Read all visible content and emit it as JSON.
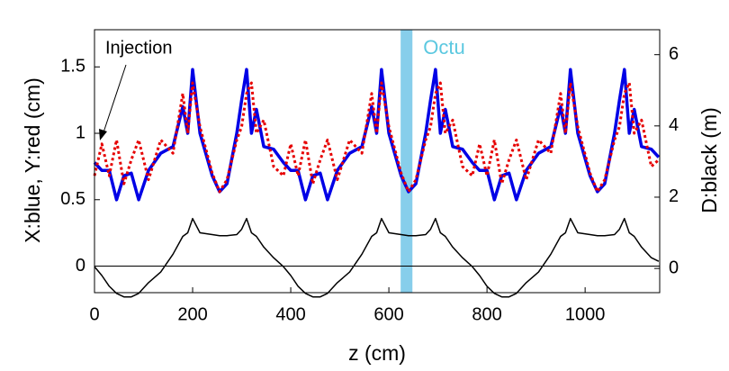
{
  "chart_data": {
    "type": "line",
    "xlabel": "z (cm)",
    "ylabel": "X:blue, Y:red (cm)",
    "y2label": "D:black (m)",
    "xlim": [
      0,
      1152
    ],
    "xticks": [
      0,
      200,
      400,
      600,
      800,
      1000
    ],
    "ylim": [
      -0.2,
      1.78
    ],
    "yticks": [
      0,
      0.5,
      1,
      1.5
    ],
    "y2lim": [
      -0.68,
      6.7
    ],
    "y2ticks": [
      0,
      2,
      4,
      6
    ],
    "highlight": {
      "label": "Octu",
      "xrange": [
        624,
        648
      ],
      "color": "#87ceeb"
    },
    "annotation": "Injection",
    "x": [
      0,
      15,
      30,
      45,
      60,
      75,
      90,
      110,
      135,
      160,
      180,
      190,
      200,
      215,
      240,
      255,
      270,
      290,
      300,
      310,
      320,
      330,
      345,
      365,
      385,
      400,
      415,
      430,
      445,
      460,
      475,
      495,
      520,
      545,
      565,
      575,
      585,
      600,
      625,
      640,
      655,
      675,
      685,
      695,
      705,
      715,
      730,
      750,
      770,
      785,
      800,
      815,
      830,
      845,
      860,
      880,
      905,
      930,
      950,
      960,
      970,
      985,
      1010,
      1025,
      1040,
      1060,
      1070,
      1080,
      1090,
      1100,
      1115,
      1135,
      1150
    ],
    "series": [
      {
        "color": "#0000e6",
        "style": "solid",
        "values": [
          0.78,
          0.72,
          0.72,
          0.5,
          0.68,
          0.7,
          0.5,
          0.72,
          0.85,
          0.9,
          1.2,
          1.0,
          1.48,
          1.0,
          0.68,
          0.56,
          0.62,
          1.0,
          1.25,
          1.48,
          1.0,
          1.18,
          0.9,
          0.88,
          0.78,
          0.72,
          0.72,
          0.5,
          0.68,
          0.7,
          0.5,
          0.72,
          0.85,
          0.9,
          1.2,
          1.0,
          1.48,
          1.0,
          0.68,
          0.56,
          0.62,
          1.0,
          1.25,
          1.48,
          1.0,
          1.18,
          0.9,
          0.88,
          0.78,
          0.72,
          0.72,
          0.5,
          0.68,
          0.7,
          0.5,
          0.72,
          0.85,
          0.9,
          1.2,
          1.0,
          1.48,
          1.0,
          0.68,
          0.56,
          0.62,
          1.0,
          1.25,
          1.48,
          1.0,
          1.18,
          0.9,
          0.88,
          0.82
        ]
      },
      {
        "color": "#e60000",
        "style": "dotted",
        "values": [
          0.68,
          0.92,
          0.68,
          0.95,
          0.62,
          0.8,
          0.95,
          0.65,
          0.95,
          0.85,
          1.3,
          1.0,
          1.38,
          1.05,
          0.7,
          0.56,
          0.65,
          0.95,
          1.05,
          1.3,
          1.38,
          1.0,
          1.1,
          0.75,
          0.68,
          0.92,
          0.68,
          0.95,
          0.62,
          0.8,
          0.95,
          0.65,
          0.95,
          0.85,
          1.3,
          1.0,
          1.38,
          1.05,
          0.7,
          0.56,
          0.65,
          0.95,
          1.05,
          1.3,
          1.38,
          1.0,
          1.1,
          0.75,
          0.68,
          0.92,
          0.68,
          0.95,
          0.62,
          0.8,
          0.95,
          0.65,
          0.95,
          0.85,
          1.3,
          1.0,
          1.38,
          1.05,
          0.7,
          0.56,
          0.65,
          0.95,
          1.05,
          1.3,
          1.38,
          1.0,
          1.1,
          0.75,
          0.8
        ]
      },
      {
        "color": "#000000",
        "style": "thin",
        "axis": "y2",
        "values": [
          0.05,
          -0.2,
          -0.5,
          -0.7,
          -0.8,
          -0.8,
          -0.7,
          -0.4,
          -0.1,
          0.4,
          0.9,
          1.0,
          1.4,
          1.0,
          0.95,
          0.92,
          0.92,
          0.95,
          1.1,
          1.4,
          1.0,
          0.9,
          0.6,
          0.3,
          0.05,
          -0.2,
          -0.5,
          -0.7,
          -0.8,
          -0.8,
          -0.7,
          -0.4,
          -0.1,
          0.4,
          0.9,
          1.0,
          1.4,
          1.0,
          0.95,
          0.92,
          0.92,
          0.95,
          1.1,
          1.4,
          1.0,
          0.9,
          0.6,
          0.3,
          0.05,
          -0.2,
          -0.5,
          -0.7,
          -0.8,
          -0.8,
          -0.7,
          -0.4,
          -0.1,
          0.4,
          0.9,
          1.0,
          1.4,
          1.0,
          0.95,
          0.92,
          0.92,
          0.95,
          1.1,
          1.4,
          1.0,
          0.9,
          0.6,
          0.3,
          0.2
        ]
      }
    ]
  }
}
